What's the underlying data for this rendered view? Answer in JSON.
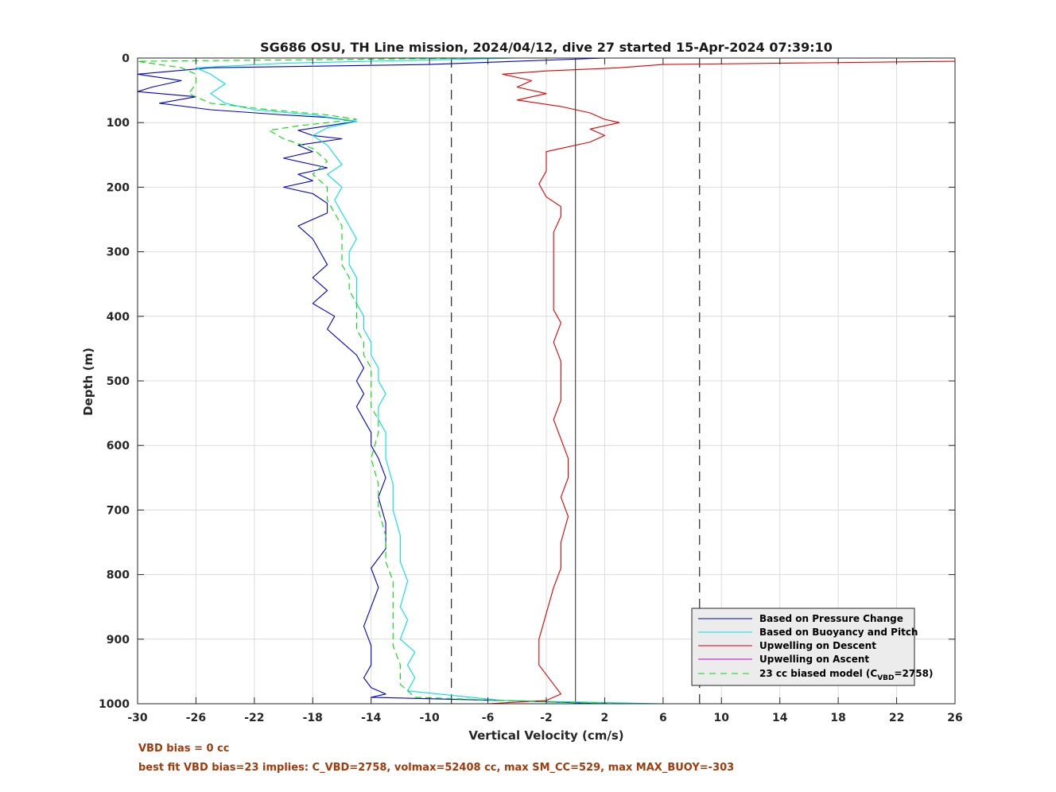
{
  "chart_data": {
    "type": "line",
    "title": "SG686 OSU, TH Line mission, 2024/04/12, dive 27 started 15-Apr-2024 07:39:10",
    "xlabel": "Vertical Velocity (cm/s)",
    "ylabel": "Depth (m)",
    "xlim": [
      -30,
      26
    ],
    "ylim": [
      0,
      1000
    ],
    "y_reversed": true,
    "grid": true,
    "x_ticks": [
      "-30",
      "-26",
      "-22",
      "-18",
      "-14",
      "-10",
      "-6",
      "-2",
      "2",
      "6",
      "10",
      "14",
      "18",
      "22",
      "26"
    ],
    "y_ticks": [
      "0",
      "100",
      "200",
      "300",
      "400",
      "500",
      "600",
      "700",
      "800",
      "900",
      "1000"
    ],
    "reference_lines": {
      "solid_x": 0,
      "dashed_x": [
        -8.5,
        8.5
      ]
    },
    "legend_placement": "bottom-right",
    "series": [
      {
        "name": "Based on Pressure Change",
        "color": "#0000c8",
        "style": "solid",
        "points": [
          [
            2,
            0
          ],
          [
            -10,
            10
          ],
          [
            -25,
            15
          ],
          [
            -30,
            25
          ],
          [
            -27,
            35
          ],
          [
            -29,
            45
          ],
          [
            -30,
            52
          ],
          [
            -26,
            60
          ],
          [
            -28.5,
            70
          ],
          [
            -25,
            80
          ],
          [
            -20,
            88
          ],
          [
            -17,
            92
          ],
          [
            -15,
            98
          ],
          [
            -17,
            105
          ],
          [
            -19,
            112
          ],
          [
            -18,
            120
          ],
          [
            -16,
            125
          ],
          [
            -19,
            135
          ],
          [
            -18,
            145
          ],
          [
            -20,
            155
          ],
          [
            -18,
            165
          ],
          [
            -17,
            170
          ],
          [
            -19,
            180
          ],
          [
            -18,
            190
          ],
          [
            -20,
            200
          ],
          [
            -18,
            210
          ],
          [
            -17,
            225
          ],
          [
            -17,
            240
          ],
          [
            -19,
            260
          ],
          [
            -18,
            280
          ],
          [
            -17.5,
            300
          ],
          [
            -17,
            320
          ],
          [
            -18,
            340
          ],
          [
            -17,
            360
          ],
          [
            -18,
            380
          ],
          [
            -16.5,
            400
          ],
          [
            -17,
            420
          ],
          [
            -16,
            440
          ],
          [
            -15,
            460
          ],
          [
            -14.5,
            480
          ],
          [
            -15,
            500
          ],
          [
            -14.5,
            520
          ],
          [
            -15,
            540
          ],
          [
            -14.5,
            560
          ],
          [
            -14,
            580
          ],
          [
            -14,
            600
          ],
          [
            -13.5,
            620
          ],
          [
            -13,
            650
          ],
          [
            -13.5,
            680
          ],
          [
            -13,
            720
          ],
          [
            -13,
            760
          ],
          [
            -14,
            790
          ],
          [
            -13.5,
            820
          ],
          [
            -14,
            850
          ],
          [
            -14.5,
            880
          ],
          [
            -14,
            910
          ],
          [
            -14,
            940
          ],
          [
            -14.5,
            960
          ],
          [
            -14,
            975
          ],
          [
            -13,
            985
          ],
          [
            -14,
            990
          ],
          [
            -5,
            995
          ],
          [
            2,
            1000
          ]
        ]
      },
      {
        "name": "Based on Buoyancy and Pitch",
        "color": "#00e0e0",
        "style": "solid",
        "points": [
          [
            -4,
            0
          ],
          [
            -20,
            8
          ],
          [
            -26,
            15
          ],
          [
            -25,
            25
          ],
          [
            -24,
            40
          ],
          [
            -25,
            55
          ],
          [
            -24,
            70
          ],
          [
            -22,
            80
          ],
          [
            -18,
            88
          ],
          [
            -15,
            98
          ],
          [
            -17,
            108
          ],
          [
            -18,
            120
          ],
          [
            -17,
            135
          ],
          [
            -16.5,
            150
          ],
          [
            -16,
            165
          ],
          [
            -17,
            180
          ],
          [
            -16,
            200
          ],
          [
            -16.5,
            220
          ],
          [
            -16,
            240
          ],
          [
            -15.5,
            260
          ],
          [
            -15,
            280
          ],
          [
            -15.5,
            300
          ],
          [
            -15.5,
            320
          ],
          [
            -15,
            340
          ],
          [
            -15,
            360
          ],
          [
            -15,
            380
          ],
          [
            -14.5,
            400
          ],
          [
            -14.5,
            420
          ],
          [
            -14,
            440
          ],
          [
            -14,
            460
          ],
          [
            -13.5,
            480
          ],
          [
            -13.5,
            500
          ],
          [
            -13,
            520
          ],
          [
            -13.5,
            540
          ],
          [
            -13.5,
            560
          ],
          [
            -13,
            580
          ],
          [
            -13,
            620
          ],
          [
            -12.5,
            660
          ],
          [
            -12.5,
            700
          ],
          [
            -12,
            740
          ],
          [
            -12,
            780
          ],
          [
            -11.5,
            810
          ],
          [
            -12,
            850
          ],
          [
            -11.5,
            870
          ],
          [
            -12,
            900
          ],
          [
            -11,
            920
          ],
          [
            -11.5,
            940
          ],
          [
            -11,
            960
          ],
          [
            -11.5,
            980
          ],
          [
            -5,
            995
          ],
          [
            6,
            1000
          ]
        ]
      },
      {
        "name": "Upwelling on Descent",
        "color": "#e00000",
        "style": "solid",
        "points": [
          [
            26,
            5
          ],
          [
            6,
            10
          ],
          [
            3,
            15
          ],
          [
            -2,
            20
          ],
          [
            -5,
            25
          ],
          [
            -3,
            35
          ],
          [
            -4,
            45
          ],
          [
            -2,
            55
          ],
          [
            -4,
            65
          ],
          [
            -1,
            75
          ],
          [
            1,
            85
          ],
          [
            2,
            95
          ],
          [
            3,
            100
          ],
          [
            1,
            110
          ],
          [
            2,
            120
          ],
          [
            1,
            130
          ],
          [
            -2,
            145
          ],
          [
            -2,
            160
          ],
          [
            -2,
            175
          ],
          [
            -2.5,
            195
          ],
          [
            -2,
            215
          ],
          [
            -1,
            230
          ],
          [
            -1,
            245
          ],
          [
            -1.5,
            270
          ],
          [
            -1.5,
            300
          ],
          [
            -1.5,
            330
          ],
          [
            -1.5,
            360
          ],
          [
            -1.5,
            390
          ],
          [
            -1,
            410
          ],
          [
            -1.5,
            440
          ],
          [
            -1,
            470
          ],
          [
            -1,
            500
          ],
          [
            -1,
            530
          ],
          [
            -1.5,
            560
          ],
          [
            -1,
            590
          ],
          [
            -0.5,
            620
          ],
          [
            -0.5,
            650
          ],
          [
            -1,
            680
          ],
          [
            -0.5,
            710
          ],
          [
            -1,
            750
          ],
          [
            -1,
            790
          ],
          [
            -1.5,
            820
          ],
          [
            -2,
            860
          ],
          [
            -2.5,
            900
          ],
          [
            -2.5,
            940
          ],
          [
            -1.5,
            970
          ],
          [
            -1,
            985
          ],
          [
            -2,
            995
          ],
          [
            -6,
            1000
          ]
        ]
      },
      {
        "name": "Upwelling on Ascent",
        "color": "#c000c0",
        "style": "solid",
        "points": []
      },
      {
        "name": "23 cc biased model (C_VBD=2758)",
        "color": "#00dd00",
        "style": "dashed",
        "points": [
          [
            -6,
            0
          ],
          [
            -30,
            5
          ],
          [
            -27,
            15
          ],
          [
            -26,
            25
          ],
          [
            -26,
            40
          ],
          [
            -26.5,
            55
          ],
          [
            -25,
            70
          ],
          [
            -21,
            80
          ],
          [
            -17,
            88
          ],
          [
            -15,
            95
          ],
          [
            -19,
            105
          ],
          [
            -21,
            112
          ],
          [
            -20,
            125
          ],
          [
            -18,
            140
          ],
          [
            -17,
            160
          ],
          [
            -18,
            180
          ],
          [
            -17,
            200
          ],
          [
            -17,
            220
          ],
          [
            -16.5,
            240
          ],
          [
            -16,
            260
          ],
          [
            -16,
            280
          ],
          [
            -16,
            300
          ],
          [
            -16,
            320
          ],
          [
            -15.5,
            340
          ],
          [
            -15.5,
            360
          ],
          [
            -15,
            380
          ],
          [
            -15,
            400
          ],
          [
            -15,
            420
          ],
          [
            -14.5,
            440
          ],
          [
            -14.5,
            460
          ],
          [
            -14,
            480
          ],
          [
            -14,
            500
          ],
          [
            -14,
            520
          ],
          [
            -14,
            540
          ],
          [
            -13.5,
            560
          ],
          [
            -13.5,
            580
          ],
          [
            -14,
            620
          ],
          [
            -13.5,
            660
          ],
          [
            -13.5,
            700
          ],
          [
            -13,
            740
          ],
          [
            -13,
            780
          ],
          [
            -12.5,
            810
          ],
          [
            -12.5,
            850
          ],
          [
            -12.5,
            880
          ],
          [
            -12.5,
            910
          ],
          [
            -12,
            940
          ],
          [
            -12,
            970
          ],
          [
            -11,
            990
          ],
          [
            -5,
            995
          ],
          [
            3,
            1000
          ]
        ]
      }
    ],
    "legend_entries": [
      "Based on Pressure Change",
      "Based on Buoyancy and Pitch",
      "Upwelling on Descent",
      "Upwelling on Ascent"
    ],
    "legend_model_prefix": "23 cc biased model (C",
    "legend_model_sub": "VBD",
    "legend_model_suffix": "=2758)"
  },
  "footnotes": {
    "line1": "VBD bias = 0 cc",
    "line2": "best fit VBD bias=23 implies: C_VBD=2758, volmax=52408 cc, max SM_CC=529, max MAX_BUOY=-303"
  }
}
